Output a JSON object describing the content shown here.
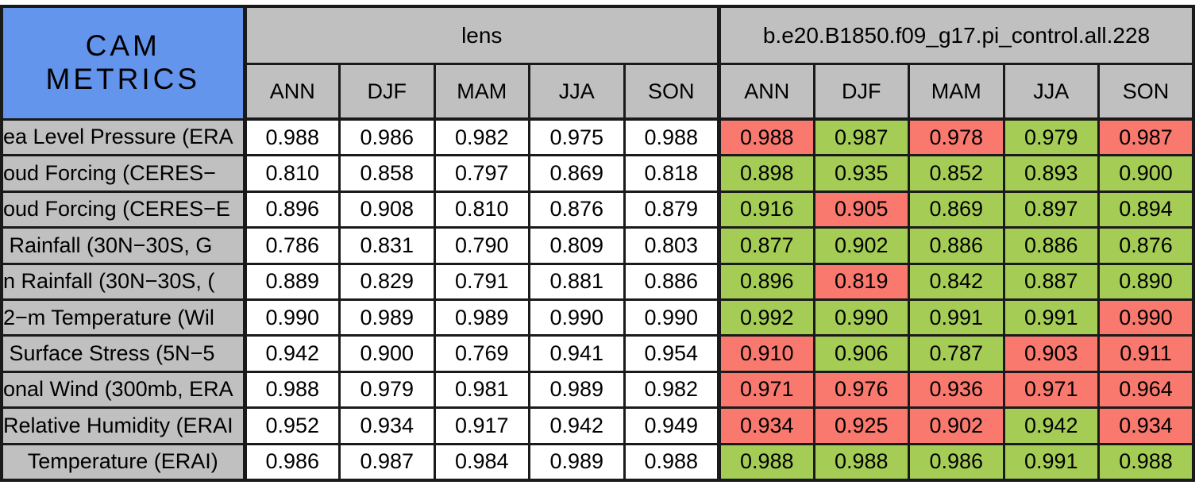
{
  "chart_data": {
    "type": "table",
    "title": "CAM METRICS",
    "column_groups": [
      "lens",
      "b.e20.B1850.f09_g17.pi_control.all.228"
    ],
    "seasons": [
      "ANN",
      "DJF",
      "MAM",
      "JJA",
      "SON"
    ],
    "rows": [
      {
        "label": "ea Level Pressure (ERA",
        "lens": [
          "0.988",
          "0.986",
          "0.982",
          "0.975",
          "0.988"
        ],
        "control": [
          "0.988",
          "0.987",
          "0.978",
          "0.979",
          "0.987"
        ],
        "control_colors": [
          "red",
          "green",
          "red",
          "green",
          "red"
        ]
      },
      {
        "label": "oud Forcing (CERES−",
        "lens": [
          "0.810",
          "0.858",
          "0.797",
          "0.869",
          "0.818"
        ],
        "control": [
          "0.898",
          "0.935",
          "0.852",
          "0.893",
          "0.900"
        ],
        "control_colors": [
          "green",
          "green",
          "green",
          "green",
          "green"
        ]
      },
      {
        "label": "oud Forcing (CERES−E",
        "lens": [
          "0.896",
          "0.908",
          "0.810",
          "0.876",
          "0.879"
        ],
        "control": [
          "0.916",
          "0.905",
          "0.869",
          "0.897",
          "0.894"
        ],
        "control_colors": [
          "green",
          "red",
          "green",
          "green",
          "green"
        ]
      },
      {
        "label": " Rainfall (30N−30S, G",
        "lens": [
          "0.786",
          "0.831",
          "0.790",
          "0.809",
          "0.803"
        ],
        "control": [
          "0.877",
          "0.902",
          "0.886",
          "0.886",
          "0.876"
        ],
        "control_colors": [
          "green",
          "green",
          "green",
          "green",
          "green"
        ]
      },
      {
        "label": "n Rainfall (30N−30S, (",
        "lens": [
          "0.889",
          "0.829",
          "0.791",
          "0.881",
          "0.886"
        ],
        "control": [
          "0.896",
          "0.819",
          "0.842",
          "0.887",
          "0.890"
        ],
        "control_colors": [
          "green",
          "red",
          "green",
          "green",
          "green"
        ]
      },
      {
        "label": "2−m Temperature (Wil",
        "lens": [
          "0.990",
          "0.989",
          "0.989",
          "0.990",
          "0.990"
        ],
        "control": [
          "0.992",
          "0.990",
          "0.991",
          "0.991",
          "0.990"
        ],
        "control_colors": [
          "green",
          "green",
          "green",
          "green",
          "red"
        ]
      },
      {
        "label": " Surface Stress (5N−5",
        "lens": [
          "0.942",
          "0.900",
          "0.769",
          "0.941",
          "0.954"
        ],
        "control": [
          "0.910",
          "0.906",
          "0.787",
          "0.903",
          "0.911"
        ],
        "control_colors": [
          "red",
          "green",
          "green",
          "red",
          "red"
        ]
      },
      {
        "label": "onal Wind (300mb, ERA",
        "lens": [
          "0.988",
          "0.979",
          "0.981",
          "0.989",
          "0.982"
        ],
        "control": [
          "0.971",
          "0.976",
          "0.936",
          "0.971",
          "0.964"
        ],
        "control_colors": [
          "red",
          "red",
          "red",
          "red",
          "red"
        ]
      },
      {
        "label": "Relative Humidity (ERAI",
        "lens": [
          "0.952",
          "0.934",
          "0.917",
          "0.942",
          "0.949"
        ],
        "control": [
          "0.934",
          "0.925",
          "0.902",
          "0.942",
          "0.934"
        ],
        "control_colors": [
          "red",
          "red",
          "red",
          "green",
          "red"
        ]
      },
      {
        "label": "Temperature (ERAI)",
        "label_align": "center",
        "lens": [
          "0.986",
          "0.987",
          "0.984",
          "0.989",
          "0.988"
        ],
        "control": [
          "0.988",
          "0.988",
          "0.986",
          "0.991",
          "0.988"
        ],
        "control_colors": [
          "green",
          "green",
          "green",
          "green",
          "green"
        ]
      }
    ],
    "colors": {
      "title_bg": "#6495ed",
      "header_bg": "#c0c0c0",
      "label_bg": "#c0c0c0",
      "lens_cell_bg": "#ffffff",
      "green": "#a5cd56",
      "red": "#f9796f",
      "border": "#1a1a1a",
      "text": "#000000"
    },
    "layout": {
      "grid": "on",
      "legend": "none"
    }
  }
}
